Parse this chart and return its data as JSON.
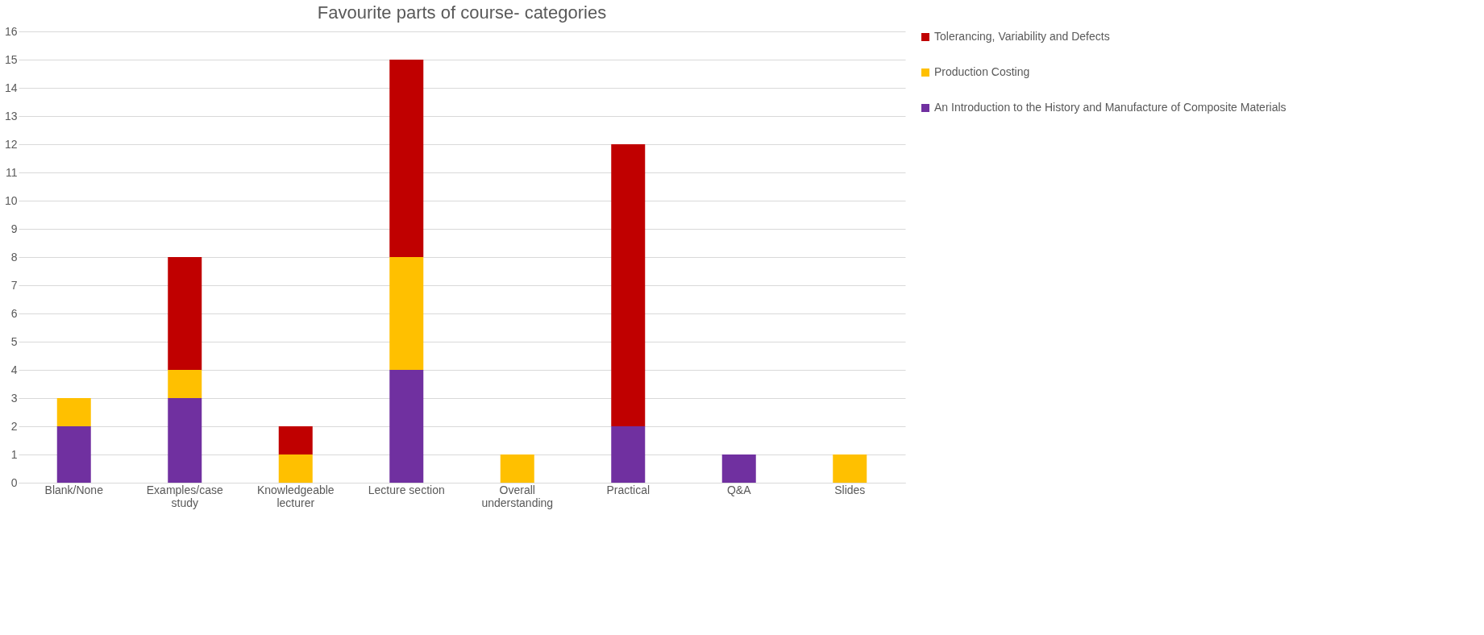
{
  "chart_data": {
    "type": "bar",
    "title": "Favourite parts of course- categories",
    "categories": [
      "Blank/None",
      "Examples/case study",
      "Knowledgeable lecturer",
      "Lecture section",
      "Overall understanding",
      "Practical",
      "Q&A",
      "Slides"
    ],
    "stacked": true,
    "series": [
      {
        "name": "An Introduction to the History and Manufacture of Composite Materials",
        "color": "#7030a0",
        "values": [
          2,
          3,
          0,
          4,
          0,
          2,
          1,
          0
        ]
      },
      {
        "name": "Production Costing",
        "color": "#ffc000",
        "values": [
          1,
          1,
          1,
          4,
          1,
          0,
          0,
          1
        ]
      },
      {
        "name": "Tolerancing, Variability and Defects",
        "color": "#c00000",
        "values": [
          0,
          4,
          1,
          7,
          0,
          10,
          0,
          0
        ]
      }
    ],
    "ylim": [
      0,
      16
    ],
    "yticks": [
      0,
      1,
      2,
      3,
      4,
      5,
      6,
      7,
      8,
      9,
      10,
      11,
      12,
      13,
      14,
      15,
      16
    ],
    "grid": "y",
    "legend": "right"
  }
}
